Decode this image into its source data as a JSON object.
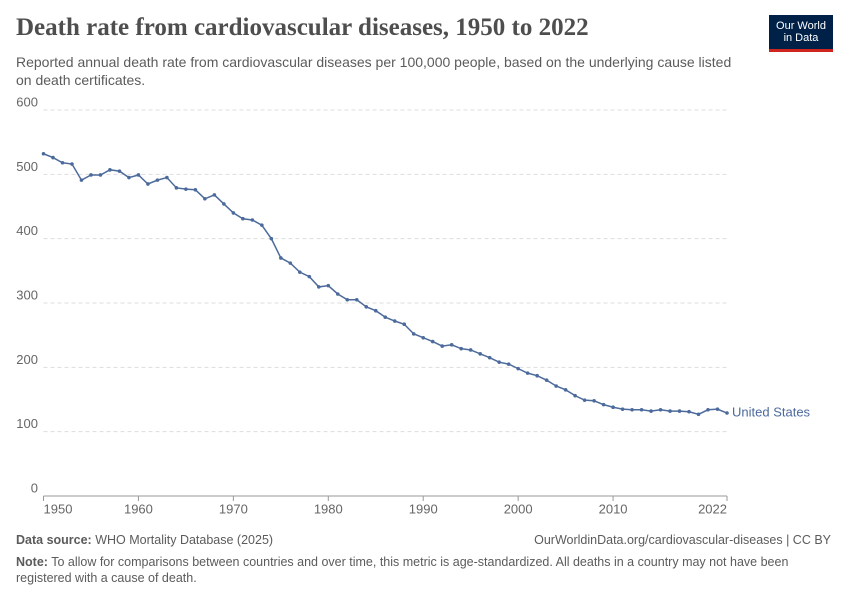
{
  "chart_data": {
    "type": "line",
    "title": "Death rate from cardiovascular diseases, 1950 to 2022",
    "subtitle": "Reported annual death rate from cardiovascular diseases per 100,000 people, based on the underlying cause listed on death certificates.",
    "x": [
      1950,
      1951,
      1952,
      1953,
      1954,
      1955,
      1956,
      1957,
      1958,
      1959,
      1960,
      1961,
      1962,
      1963,
      1964,
      1965,
      1966,
      1967,
      1968,
      1969,
      1970,
      1971,
      1972,
      1973,
      1974,
      1975,
      1976,
      1977,
      1978,
      1979,
      1980,
      1981,
      1982,
      1983,
      1984,
      1985,
      1986,
      1987,
      1988,
      1989,
      1990,
      1991,
      1992,
      1993,
      1994,
      1995,
      1996,
      1997,
      1998,
      1999,
      2000,
      2001,
      2002,
      2003,
      2004,
      2005,
      2006,
      2007,
      2008,
      2009,
      2010,
      2011,
      2012,
      2013,
      2014,
      2015,
      2016,
      2017,
      2018,
      2019,
      2020,
      2021,
      2022
    ],
    "series": [
      {
        "name": "United States",
        "color": "#4c6a9c",
        "values": [
          532,
          526,
          518,
          516,
          491,
          499,
          499,
          507,
          505,
          495,
          499,
          485,
          491,
          495,
          479,
          477,
          476,
          462,
          468,
          454,
          440,
          431,
          429,
          421,
          400,
          370,
          362,
          348,
          341,
          325,
          327,
          314,
          305,
          305,
          294,
          288,
          278,
          272,
          267,
          252,
          246,
          240,
          233,
          235,
          229,
          227,
          221,
          215,
          208,
          205,
          198,
          191,
          187,
          180,
          171,
          165,
          156,
          149,
          148,
          142,
          138,
          135,
          134,
          134,
          132,
          134,
          132,
          132,
          131,
          127,
          134,
          135,
          129
        ]
      }
    ],
    "xlim": [
      1950,
      2022
    ],
    "xticks": [
      1950,
      1960,
      1970,
      1980,
      1990,
      2000,
      2010,
      2022
    ],
    "ylim": [
      0,
      600
    ],
    "yticks": [
      0,
      100,
      200,
      300,
      400,
      500,
      600
    ],
    "grid": true,
    "logo": [
      "Our World",
      "in Data"
    ],
    "source_label": "Data source:",
    "source": "WHO Mortality Database (2025)",
    "url": "OurWorldinData.org/cardiovascular-diseases | CC BY",
    "note_label": "Note:",
    "note": "To allow for comparisons between countries and over time, this metric is age-standardized. All deaths in a country may not have been registered with a cause of death."
  }
}
